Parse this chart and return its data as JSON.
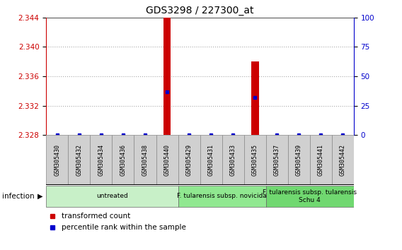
{
  "title": "GDS3298 / 227300_at",
  "samples": [
    "GSM305430",
    "GSM305432",
    "GSM305434",
    "GSM305436",
    "GSM305438",
    "GSM305440",
    "GSM305429",
    "GSM305431",
    "GSM305433",
    "GSM305435",
    "GSM305437",
    "GSM305439",
    "GSM305441",
    "GSM305442"
  ],
  "red_values": [
    2.328,
    2.328,
    2.328,
    2.328,
    2.328,
    2.344,
    2.328,
    2.328,
    2.328,
    2.338,
    2.328,
    2.328,
    2.328,
    2.328
  ],
  "blue_pct": [
    0,
    0,
    0,
    0,
    0,
    37,
    0,
    0,
    0,
    32,
    0,
    0,
    0,
    0
  ],
  "ylim": [
    2.328,
    2.344
  ],
  "yticks_left": [
    2.328,
    2.332,
    2.336,
    2.34,
    2.344
  ],
  "yticks_right": [
    0,
    25,
    50,
    75,
    100
  ],
  "groups": [
    {
      "label": "untreated",
      "start": 0,
      "end": 5,
      "color": "#c8f0c8"
    },
    {
      "label": "F. tularensis subsp. novicida",
      "start": 6,
      "end": 9,
      "color": "#90e890"
    },
    {
      "label": "F. tularensis subsp. tularensis\nSchu 4",
      "start": 10,
      "end": 13,
      "color": "#70d870"
    }
  ],
  "red_color": "#cc0000",
  "blue_color": "#0000cc",
  "bar_base": 2.328,
  "grid_color": "#aaaaaa",
  "legend_red": "transformed count",
  "legend_blue": "percentile rank within the sample",
  "sample_box_color": "#d0d0d0",
  "plot_bg": "#ffffff"
}
